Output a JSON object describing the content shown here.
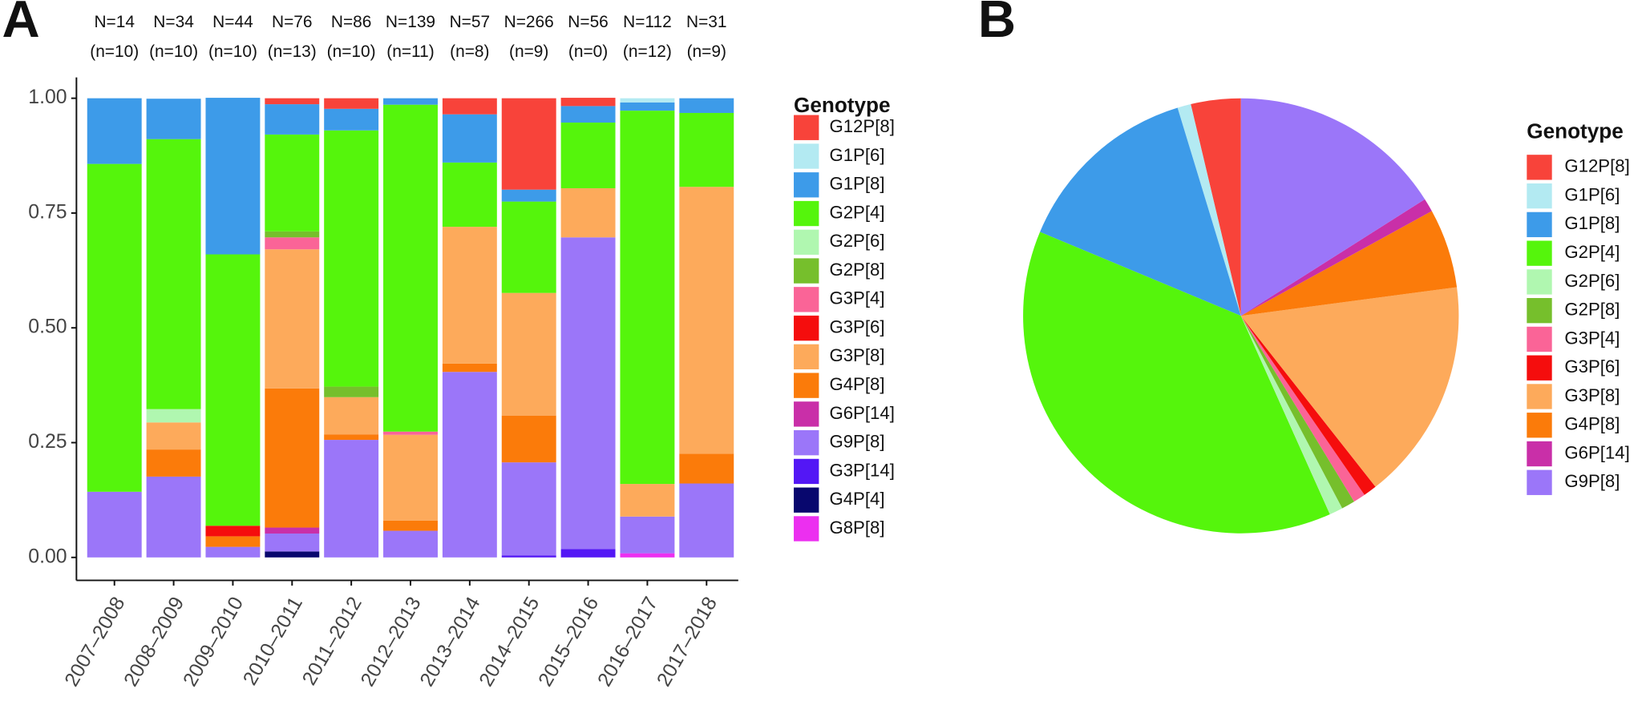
{
  "chart_data": [
    {
      "type": "bar",
      "panel": "A",
      "stacked": true,
      "legend_title": "Genotype",
      "categories": [
        "2007–2008",
        "2008–2009",
        "2009–2010",
        "2010–2011",
        "2011–2012",
        "2012–2013",
        "2013–2014",
        "2014–2015",
        "2015–2016",
        "2016–2017",
        "2017–2018"
      ],
      "column_labels": [
        "N=14",
        "N=34",
        "N=44",
        "N=76",
        "N=86",
        "N=139",
        "N=57",
        "N=266",
        "N=56",
        "N=112",
        "N=31"
      ],
      "column_sublabels": [
        "(n=10)",
        "(n=10)",
        "(n=10)",
        "(n=13)",
        "(n=10)",
        "(n=11)",
        "(n=8)",
        "(n=9)",
        "(n=0)",
        "(n=12)",
        "(n=9)"
      ],
      "ylim": [
        -0.05,
        1.05
      ],
      "yticks": [
        {
          "value": 0,
          "label": "0.00"
        },
        {
          "value": 0.25,
          "label": "0.25"
        },
        {
          "value": 0.5,
          "label": "0.50"
        },
        {
          "value": 0.75,
          "label": "0.75"
        },
        {
          "value": 1,
          "label": "1.00"
        }
      ],
      "series": [
        {
          "name": "G12P[8]",
          "color": "#f8433a",
          "values": [
            0,
            0,
            0,
            0.013,
            0.023,
            0,
            0.035,
            0.199,
            0.018,
            0,
            0
          ]
        },
        {
          "name": "G1P[6]",
          "color": "#b3eaf2",
          "values": [
            0,
            0,
            0,
            0,
            0,
            0,
            0,
            0,
            0,
            0.009,
            0
          ]
        },
        {
          "name": "G1P[8]",
          "color": "#3d9be9",
          "values": [
            0.143,
            0.088,
            0.341,
            0.066,
            0.047,
            0.014,
            0.105,
            0.026,
            0.036,
            0.018,
            0.032
          ]
        },
        {
          "name": "G2P[4]",
          "color": "#55f50c",
          "values": [
            0.714,
            0.588,
            0.591,
            0.211,
            0.558,
            0.712,
            0.14,
            0.199,
            0.143,
            0.813,
            0.161
          ]
        },
        {
          "name": "G2P[6]",
          "color": "#b0f7b0",
          "values": [
            0,
            0.029,
            0,
            0,
            0,
            0,
            0,
            0,
            0,
            0,
            0
          ]
        },
        {
          "name": "G2P[8]",
          "color": "#76bf2c",
          "values": [
            0,
            0,
            0,
            0.013,
            0.023,
            0,
            0,
            0,
            0,
            0,
            0
          ]
        },
        {
          "name": "G3P[4]",
          "color": "#fa6497",
          "values": [
            0,
            0,
            0,
            0.026,
            0,
            0.007,
            0,
            0,
            0,
            0,
            0
          ]
        },
        {
          "name": "G3P[6]",
          "color": "#f50d0d",
          "values": [
            0,
            0,
            0.023,
            0,
            0,
            0,
            0,
            0,
            0,
            0,
            0
          ]
        },
        {
          "name": "G3P[8]",
          "color": "#fdaa5b",
          "values": [
            0,
            0.059,
            0,
            0.303,
            0.081,
            0.187,
            0.298,
            0.267,
            0.107,
            0.071,
            0.581
          ]
        },
        {
          "name": "G4P[8]",
          "color": "#fb7b0a",
          "values": [
            0,
            0.059,
            0.023,
            0.303,
            0.012,
            0.022,
            0.018,
            0.102,
            0,
            0,
            0.065
          ]
        },
        {
          "name": "G6P[14]",
          "color": "#c92fa8",
          "values": [
            0,
            0,
            0,
            0.013,
            0,
            0,
            0,
            0,
            0,
            0,
            0
          ]
        },
        {
          "name": "G9P[8]",
          "color": "#9b76f9",
          "values": [
            0.143,
            0.176,
            0.023,
            0.039,
            0.256,
            0.058,
            0.404,
            0.203,
            0.679,
            0.08,
            0.161
          ]
        },
        {
          "name": "G3P[14]",
          "color": "#5317f5",
          "values": [
            0,
            0,
            0,
            0,
            0,
            0,
            0,
            0.004,
            0.018,
            0,
            0
          ]
        },
        {
          "name": "G4P[4]",
          "color": "#08076e",
          "values": [
            0,
            0,
            0,
            0.013,
            0,
            0,
            0,
            0,
            0,
            0,
            0
          ]
        },
        {
          "name": "G8P[8]",
          "color": "#ec2ff0",
          "values": [
            0,
            0,
            0,
            0,
            0,
            0,
            0,
            0,
            0,
            0.009,
            0
          ]
        }
      ]
    },
    {
      "type": "pie",
      "panel": "B",
      "legend_title": "Genotype",
      "categories": [
        "G12P[8]",
        "G1P[6]",
        "G1P[8]",
        "G2P[4]",
        "G2P[6]",
        "G2P[8]",
        "G3P[4]",
        "G3P[6]",
        "G3P[8]",
        "G4P[8]",
        "G6P[14]",
        "G9P[8]"
      ],
      "values": [
        3.7,
        1.0,
        14.0,
        38.0,
        1.0,
        1.0,
        0.9,
        1.0,
        16.5,
        5.9,
        1.0,
        16.0
      ],
      "colors": [
        "#f8433a",
        "#b3eaf2",
        "#3d9be9",
        "#55f50c",
        "#b0f7b0",
        "#76bf2c",
        "#fa6497",
        "#f50d0d",
        "#fdaa5b",
        "#fb7b0a",
        "#c92fa8",
        "#9b76f9"
      ]
    }
  ]
}
